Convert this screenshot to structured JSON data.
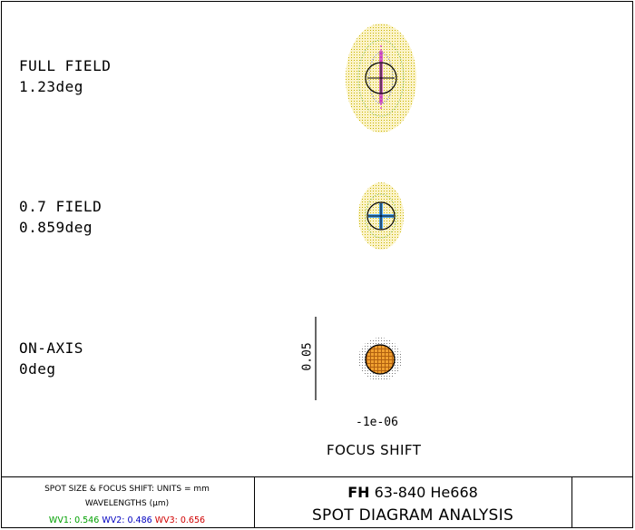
{
  "fields": [
    {
      "name": "FULL FIELD",
      "angle": "1.23deg"
    },
    {
      "name": "0.7 FIELD",
      "angle": "0.859deg"
    },
    {
      "name": "ON-AXIS",
      "angle": "0deg"
    }
  ],
  "scale_bar_label": "0.05",
  "focus_shift_value": "-1e-06",
  "focus_shift_label": "FOCUS SHIFT",
  "info": {
    "line1": "SPOT SIZE & FOCUS SHIFT: UNITS = mm",
    "line2": "WAVELENGTHS (µm)",
    "wavelengths": [
      {
        "label": "WV1: 0.546",
        "color": "#00a000"
      },
      {
        "label": "WV2: 0.486",
        "color": "#0000c0"
      },
      {
        "label": "WV3: 0.656",
        "color": "#d00000"
      }
    ]
  },
  "title": {
    "prefix": "FH",
    "lens": "63-840 He668",
    "subtitle": "SPOT DIAGRAM ANALYSIS"
  }
}
